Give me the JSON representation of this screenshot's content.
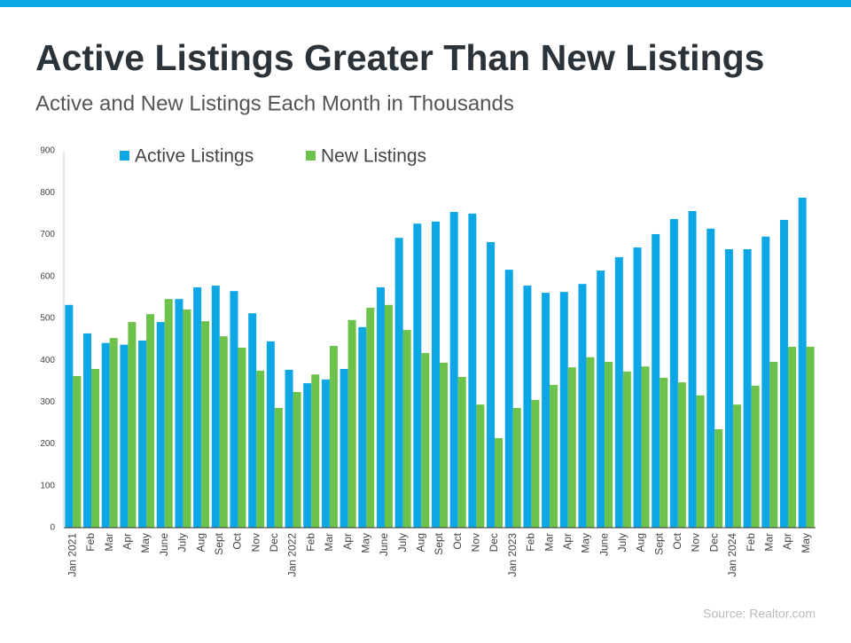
{
  "chart_data": {
    "type": "bar",
    "title": "Active Listings Greater Than New Listings",
    "subtitle": "Active and New Listings Each Month in Thousands",
    "source": "Source: Realtor.com",
    "categories": [
      "Jan 2021",
      "Feb",
      "Mar",
      "Apr",
      "May",
      "June",
      "July",
      "Aug",
      "Sept",
      "Oct",
      "Nov",
      "Dec",
      "Jan 2022",
      "Feb",
      "Mar",
      "Apr",
      "May",
      "June",
      "July",
      "Aug",
      "Sept",
      "Oct",
      "Nov",
      "Dec",
      "Jan 2023",
      "Feb",
      "Mar",
      "Apr",
      "May",
      "June",
      "July",
      "Aug",
      "Sept",
      "Oct",
      "Nov",
      "Dec",
      "Jan 2024",
      "Feb",
      "Mar",
      "Apr",
      "May"
    ],
    "series": [
      {
        "name": "Active Listings",
        "color": "#0ea7e6",
        "values": [
          532,
          464,
          441,
          437,
          447,
          491,
          546,
          574,
          578,
          565,
          512,
          445,
          377,
          345,
          354,
          379,
          479,
          574,
          692,
          726,
          731,
          754,
          750,
          682,
          616,
          578,
          561,
          563,
          582,
          614,
          646,
          669,
          701,
          737,
          756,
          714,
          665,
          665,
          695,
          735,
          788
        ]
      },
      {
        "name": "New Listings",
        "color": "#6cc24a",
        "values": [
          362,
          379,
          453,
          491,
          510,
          546,
          521,
          493,
          457,
          430,
          375,
          286,
          324,
          366,
          434,
          496,
          525,
          532,
          472,
          417,
          394,
          360,
          294,
          214,
          286,
          305,
          341,
          383,
          407,
          396,
          373,
          385,
          358,
          347,
          316,
          235,
          294,
          339,
          396,
          432,
          432
        ]
      }
    ],
    "ylim": [
      0,
      900
    ],
    "yticks": [
      0,
      100,
      200,
      300,
      400,
      500,
      600,
      700,
      800,
      900
    ],
    "grid": false
  }
}
